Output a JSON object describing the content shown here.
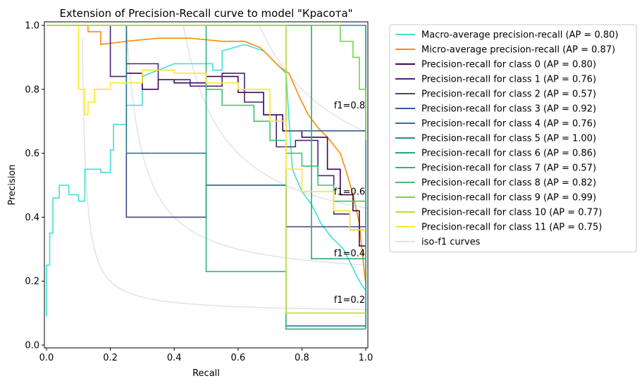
{
  "chart_data": {
    "type": "line",
    "title": "Extension of Precision-Recall curve to model \"Красота\"",
    "xlabel": "Recall",
    "ylabel": "Precision",
    "xlim": [
      0,
      1
    ],
    "ylim": [
      0,
      1
    ],
    "x_ticks": [
      0.0,
      0.2,
      0.4,
      0.6,
      0.8,
      1.0
    ],
    "y_ticks": [
      0.0,
      0.2,
      0.4,
      0.6,
      0.8,
      1.0
    ],
    "x_tick_labels": [
      "0.0",
      "0.2",
      "0.4",
      "0.6",
      "0.8",
      "1.0"
    ],
    "y_tick_labels": [
      "0.0",
      "0.2",
      "0.4",
      "0.6",
      "0.8",
      "1.0"
    ],
    "grid": false,
    "legend_position": "outside-right",
    "iso_f1": [
      {
        "f1": 0.2,
        "label": "f1=0.2",
        "color": "#e3e3e3"
      },
      {
        "f1": 0.4,
        "label": "f1=0.4",
        "color": "#e3e3e3"
      },
      {
        "f1": 0.6,
        "label": "f1=0.6",
        "color": "#e3e3e3"
      },
      {
        "f1": 0.8,
        "label": "f1=0.8",
        "color": "#e3e3e3"
      }
    ],
    "series": [
      {
        "name": "Macro-average precision-recall (AP = 0.80)",
        "color": "#40e0d0",
        "points": [
          [
            0.0,
            0.09
          ],
          [
            0.0,
            0.25
          ],
          [
            0.01,
            0.25
          ],
          [
            0.01,
            0.35
          ],
          [
            0.02,
            0.35
          ],
          [
            0.02,
            0.46
          ],
          [
            0.04,
            0.46
          ],
          [
            0.04,
            0.5
          ],
          [
            0.07,
            0.5
          ],
          [
            0.07,
            0.47
          ],
          [
            0.1,
            0.47
          ],
          [
            0.1,
            0.45
          ],
          [
            0.12,
            0.45
          ],
          [
            0.12,
            0.55
          ],
          [
            0.17,
            0.55
          ],
          [
            0.17,
            0.54
          ],
          [
            0.2,
            0.54
          ],
          [
            0.2,
            0.61
          ],
          [
            0.21,
            0.61
          ],
          [
            0.21,
            0.69
          ],
          [
            0.25,
            0.69
          ],
          [
            0.25,
            0.75
          ],
          [
            0.3,
            0.75
          ],
          [
            0.3,
            0.84
          ],
          [
            0.4,
            0.88
          ],
          [
            0.52,
            0.88
          ],
          [
            0.52,
            0.86
          ],
          [
            0.55,
            0.86
          ],
          [
            0.55,
            0.92
          ],
          [
            0.62,
            0.94
          ],
          [
            0.68,
            0.92
          ],
          [
            0.73,
            0.87
          ],
          [
            0.75,
            0.85
          ],
          [
            0.76,
            0.7
          ],
          [
            0.77,
            0.55
          ],
          [
            0.8,
            0.48
          ],
          [
            0.83,
            0.44
          ],
          [
            0.86,
            0.38
          ],
          [
            0.89,
            0.34
          ],
          [
            0.93,
            0.3
          ],
          [
            0.96,
            0.24
          ],
          [
            0.98,
            0.2
          ],
          [
            1.0,
            0.17
          ]
        ]
      },
      {
        "name": "Micro-average precision-recall (AP = 0.87)",
        "color": "#ff8c00",
        "points": [
          [
            0.08,
            1.0
          ],
          [
            0.13,
            1.0
          ],
          [
            0.13,
            0.98
          ],
          [
            0.17,
            0.98
          ],
          [
            0.17,
            0.94
          ],
          [
            0.25,
            0.95
          ],
          [
            0.35,
            0.96
          ],
          [
            0.45,
            0.96
          ],
          [
            0.55,
            0.95
          ],
          [
            0.62,
            0.95
          ],
          [
            0.67,
            0.93
          ],
          [
            0.7,
            0.9
          ],
          [
            0.73,
            0.87
          ],
          [
            0.76,
            0.85
          ],
          [
            0.79,
            0.78
          ],
          [
            0.82,
            0.72
          ],
          [
            0.85,
            0.68
          ],
          [
            0.88,
            0.65
          ],
          [
            0.92,
            0.6
          ],
          [
            0.94,
            0.54
          ],
          [
            0.96,
            0.47
          ],
          [
            0.98,
            0.38
          ],
          [
            0.99,
            0.28
          ],
          [
            1.0,
            0.19
          ]
        ]
      },
      {
        "name": "Precision-recall for class 0 (AP = 0.80)",
        "color": "#440154",
        "points": [
          [
            0.25,
            1.0
          ],
          [
            0.25,
            0.85
          ],
          [
            0.3,
            0.85
          ],
          [
            0.3,
            0.8
          ],
          [
            0.35,
            0.8
          ],
          [
            0.35,
            0.83
          ],
          [
            0.4,
            0.83
          ],
          [
            0.4,
            0.82
          ],
          [
            0.5,
            0.82
          ],
          [
            0.5,
            0.84
          ],
          [
            0.6,
            0.84
          ],
          [
            0.6,
            0.79
          ],
          [
            0.68,
            0.79
          ],
          [
            0.68,
            0.72
          ],
          [
            0.74,
            0.72
          ],
          [
            0.74,
            0.67
          ],
          [
            0.8,
            0.67
          ],
          [
            0.8,
            0.65
          ],
          [
            0.88,
            0.65
          ],
          [
            0.88,
            0.55
          ],
          [
            0.92,
            0.55
          ],
          [
            0.92,
            0.47
          ],
          [
            0.96,
            0.47
          ],
          [
            0.96,
            0.42
          ],
          [
            0.98,
            0.42
          ],
          [
            0.98,
            0.31
          ],
          [
            1.0,
            0.31
          ]
        ]
      },
      {
        "name": "Precision-recall for class 1 (AP = 0.76)",
        "color": "#482475",
        "points": [
          [
            0.2,
            1.0
          ],
          [
            0.2,
            0.84
          ],
          [
            0.25,
            0.84
          ],
          [
            0.25,
            0.88
          ],
          [
            0.35,
            0.88
          ],
          [
            0.35,
            0.83
          ],
          [
            0.45,
            0.83
          ],
          [
            0.45,
            0.81
          ],
          [
            0.55,
            0.81
          ],
          [
            0.55,
            0.85
          ],
          [
            0.62,
            0.85
          ],
          [
            0.62,
            0.76
          ],
          [
            0.68,
            0.76
          ],
          [
            0.68,
            0.72
          ],
          [
            0.72,
            0.72
          ],
          [
            0.72,
            0.62
          ],
          [
            0.78,
            0.62
          ],
          [
            0.78,
            0.64
          ],
          [
            0.85,
            0.64
          ],
          [
            0.85,
            0.53
          ],
          [
            0.9,
            0.53
          ],
          [
            0.9,
            0.41
          ],
          [
            0.95,
            0.41
          ],
          [
            0.95,
            0.36
          ],
          [
            1.0,
            0.36
          ]
        ]
      },
      {
        "name": "Precision-recall for class 2 (AP = 0.57)",
        "color": "#414487",
        "points": [
          [
            0.25,
            1.0
          ],
          [
            0.25,
            0.4
          ],
          [
            0.5,
            0.4
          ],
          [
            0.5,
            0.5
          ],
          [
            0.75,
            0.5
          ],
          [
            0.75,
            0.37
          ],
          [
            1.0,
            0.37
          ]
        ]
      },
      {
        "name": "Precision-recall for class 3 (AP = 0.92)",
        "color": "#355f8d",
        "points": [
          [
            0.75,
            1.0
          ],
          [
            0.75,
            0.67
          ],
          [
            1.0,
            0.67
          ]
        ]
      },
      {
        "name": "Precision-recall for class 4 (AP = 0.76)",
        "color": "#2a788e",
        "points": [
          [
            0.25,
            1.0
          ],
          [
            0.25,
            0.6
          ],
          [
            0.5,
            0.6
          ],
          [
            0.5,
            0.5
          ],
          [
            0.75,
            0.5
          ],
          [
            0.75,
            0.06
          ],
          [
            1.0,
            0.06
          ]
        ]
      },
      {
        "name": "Precision-recall for class 5 (AP = 1.00)",
        "color": "#21918c",
        "points": [
          [
            0.0,
            1.0
          ],
          [
            1.0,
            1.0
          ],
          [
            1.0,
            0.05
          ]
        ]
      },
      {
        "name": "Precision-recall for class 6 (AP = 0.86)",
        "color": "#22a884",
        "points": [
          [
            0.5,
            1.0
          ],
          [
            0.83,
            1.0
          ],
          [
            0.83,
            0.27
          ],
          [
            1.0,
            0.27
          ]
        ]
      },
      {
        "name": "Precision-recall for class 7 (AP = 0.57)",
        "color": "#2fb47c",
        "points": [
          [
            0.5,
            1.0
          ],
          [
            0.5,
            0.23
          ],
          [
            0.75,
            0.23
          ],
          [
            0.75,
            0.05
          ],
          [
            1.0,
            0.05
          ]
        ]
      },
      {
        "name": "Precision-recall for class 8 (AP = 0.82)",
        "color": "#44bf70",
        "points": [
          [
            0.5,
            0.8
          ],
          [
            0.55,
            0.8
          ],
          [
            0.55,
            0.75
          ],
          [
            0.65,
            0.75
          ],
          [
            0.65,
            0.7
          ],
          [
            0.7,
            0.7
          ],
          [
            0.7,
            0.64
          ],
          [
            0.75,
            0.64
          ],
          [
            0.75,
            0.6
          ],
          [
            0.8,
            0.6
          ],
          [
            0.8,
            0.56
          ],
          [
            0.85,
            0.56
          ],
          [
            0.85,
            0.5
          ],
          [
            0.9,
            0.5
          ],
          [
            0.9,
            0.45
          ],
          [
            1.0,
            0.45
          ]
        ]
      },
      {
        "name": "Precision-recall for class 9 (AP = 0.99)",
        "color": "#7ad151",
        "points": [
          [
            0.0,
            1.0
          ],
          [
            0.92,
            1.0
          ],
          [
            0.92,
            0.95
          ],
          [
            0.96,
            0.95
          ],
          [
            0.96,
            0.9
          ],
          [
            0.98,
            0.9
          ],
          [
            0.98,
            0.8
          ],
          [
            1.0,
            0.8
          ],
          [
            1.0,
            0.64
          ]
        ]
      },
      {
        "name": "Precision-recall for class 10 (AP = 0.77)",
        "color": "#bddf26",
        "points": [
          [
            0.0,
            1.0
          ],
          [
            0.75,
            1.0
          ],
          [
            0.75,
            0.1
          ],
          [
            1.0,
            0.1
          ]
        ]
      },
      {
        "name": "Precision-recall for class 11 (AP = 0.75)",
        "color": "#fde725",
        "points": [
          [
            0.1,
            1.0
          ],
          [
            0.1,
            0.8
          ],
          [
            0.12,
            0.8
          ],
          [
            0.12,
            0.72
          ],
          [
            0.13,
            0.72
          ],
          [
            0.13,
            0.76
          ],
          [
            0.15,
            0.76
          ],
          [
            0.15,
            0.8
          ],
          [
            0.2,
            0.8
          ],
          [
            0.2,
            0.82
          ],
          [
            0.3,
            0.82
          ],
          [
            0.3,
            0.86
          ],
          [
            0.4,
            0.86
          ],
          [
            0.4,
            0.85
          ],
          [
            0.5,
            0.85
          ],
          [
            0.5,
            0.82
          ],
          [
            0.6,
            0.82
          ],
          [
            0.6,
            0.8
          ],
          [
            0.7,
            0.8
          ],
          [
            0.7,
            0.7
          ],
          [
            0.75,
            0.7
          ],
          [
            0.75,
            0.55
          ],
          [
            0.8,
            0.55
          ],
          [
            0.8,
            0.48
          ],
          [
            0.9,
            0.48
          ],
          [
            0.9,
            0.42
          ],
          [
            0.95,
            0.42
          ],
          [
            0.95,
            0.36
          ],
          [
            1.0,
            0.36
          ]
        ]
      },
      {
        "name": "iso-f1 curves",
        "color": "#e3e3e3",
        "points": []
      }
    ]
  }
}
